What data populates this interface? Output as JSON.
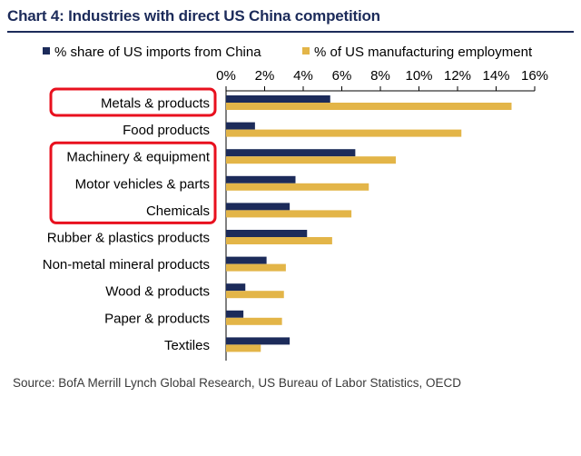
{
  "header": {
    "title": "Chart 4: Industries with direct US China competition"
  },
  "footer": {
    "source": "Source: BofA Merrill Lynch Global Research, US Bureau of Labor Statistics, OECD"
  },
  "colors": {
    "series_china": "#1c2b5a",
    "series_employment": "#e3b548",
    "highlight": "#e8101e",
    "axis": "#000000"
  },
  "chart_data": {
    "type": "bar",
    "orientation": "horizontal",
    "title": "Chart 4: Industries with direct US China competition",
    "categories": [
      "Metals & products",
      "Food products",
      "Machinery & equipment",
      "Motor vehicles & parts",
      "Chemicals",
      "Rubber & plastics products",
      "Non-metal mineral products",
      "Wood & products",
      "Paper & products",
      "Textiles"
    ],
    "series": [
      {
        "name": "% share of US imports from China",
        "values": [
          5.4,
          1.5,
          6.7,
          3.6,
          3.3,
          4.2,
          2.1,
          1.0,
          0.9,
          3.3
        ]
      },
      {
        "name": "% of US manufacturing employment",
        "values": [
          14.8,
          12.2,
          8.8,
          7.4,
          6.5,
          5.5,
          3.1,
          3.0,
          2.9,
          1.8
        ]
      }
    ],
    "xlim": [
      0,
      16
    ],
    "tick_labels": [
      "0%",
      "2%",
      "4%",
      "6%",
      "8%",
      "10%",
      "12%",
      "14%",
      "16%"
    ],
    "axis_position": "top",
    "legend_position": "top",
    "highlighted_groups": [
      [
        "Metals & products"
      ],
      [
        "Machinery & equipment",
        "Motor vehicles & parts",
        "Chemicals"
      ]
    ]
  }
}
